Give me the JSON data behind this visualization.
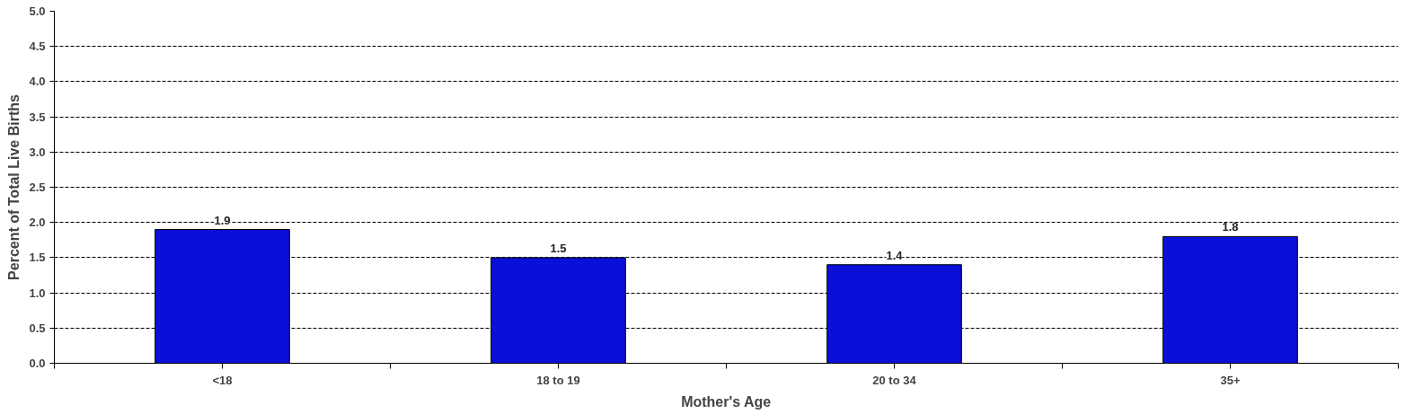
{
  "chart_data": {
    "type": "bar",
    "xlabel": "Mother's Age",
    "ylabel": "Percent of Total Live Births",
    "categories": [
      "<18",
      "18 to 19",
      "20 to 34",
      "35+"
    ],
    "values": [
      1.9,
      1.5,
      1.4,
      1.8
    ],
    "color": "#0a10d8",
    "ylim": [
      0,
      5
    ],
    "yticks": [
      {
        "value": 0,
        "label": "0.0"
      },
      {
        "value": 0.5,
        "label": "0.5"
      },
      {
        "value": 1,
        "label": "1.0"
      },
      {
        "value": 1.5,
        "label": "1.5"
      },
      {
        "value": 2,
        "label": "2.0"
      },
      {
        "value": 2.5,
        "label": "2.5"
      },
      {
        "value": 3,
        "label": "3.0"
      },
      {
        "value": 3.5,
        "label": "3.5"
      },
      {
        "value": 4,
        "label": "4.0"
      },
      {
        "value": 4.5,
        "label": "4.5"
      },
      {
        "value": 5,
        "label": "5.0"
      }
    ],
    "grid": "y",
    "data_labels": true
  }
}
